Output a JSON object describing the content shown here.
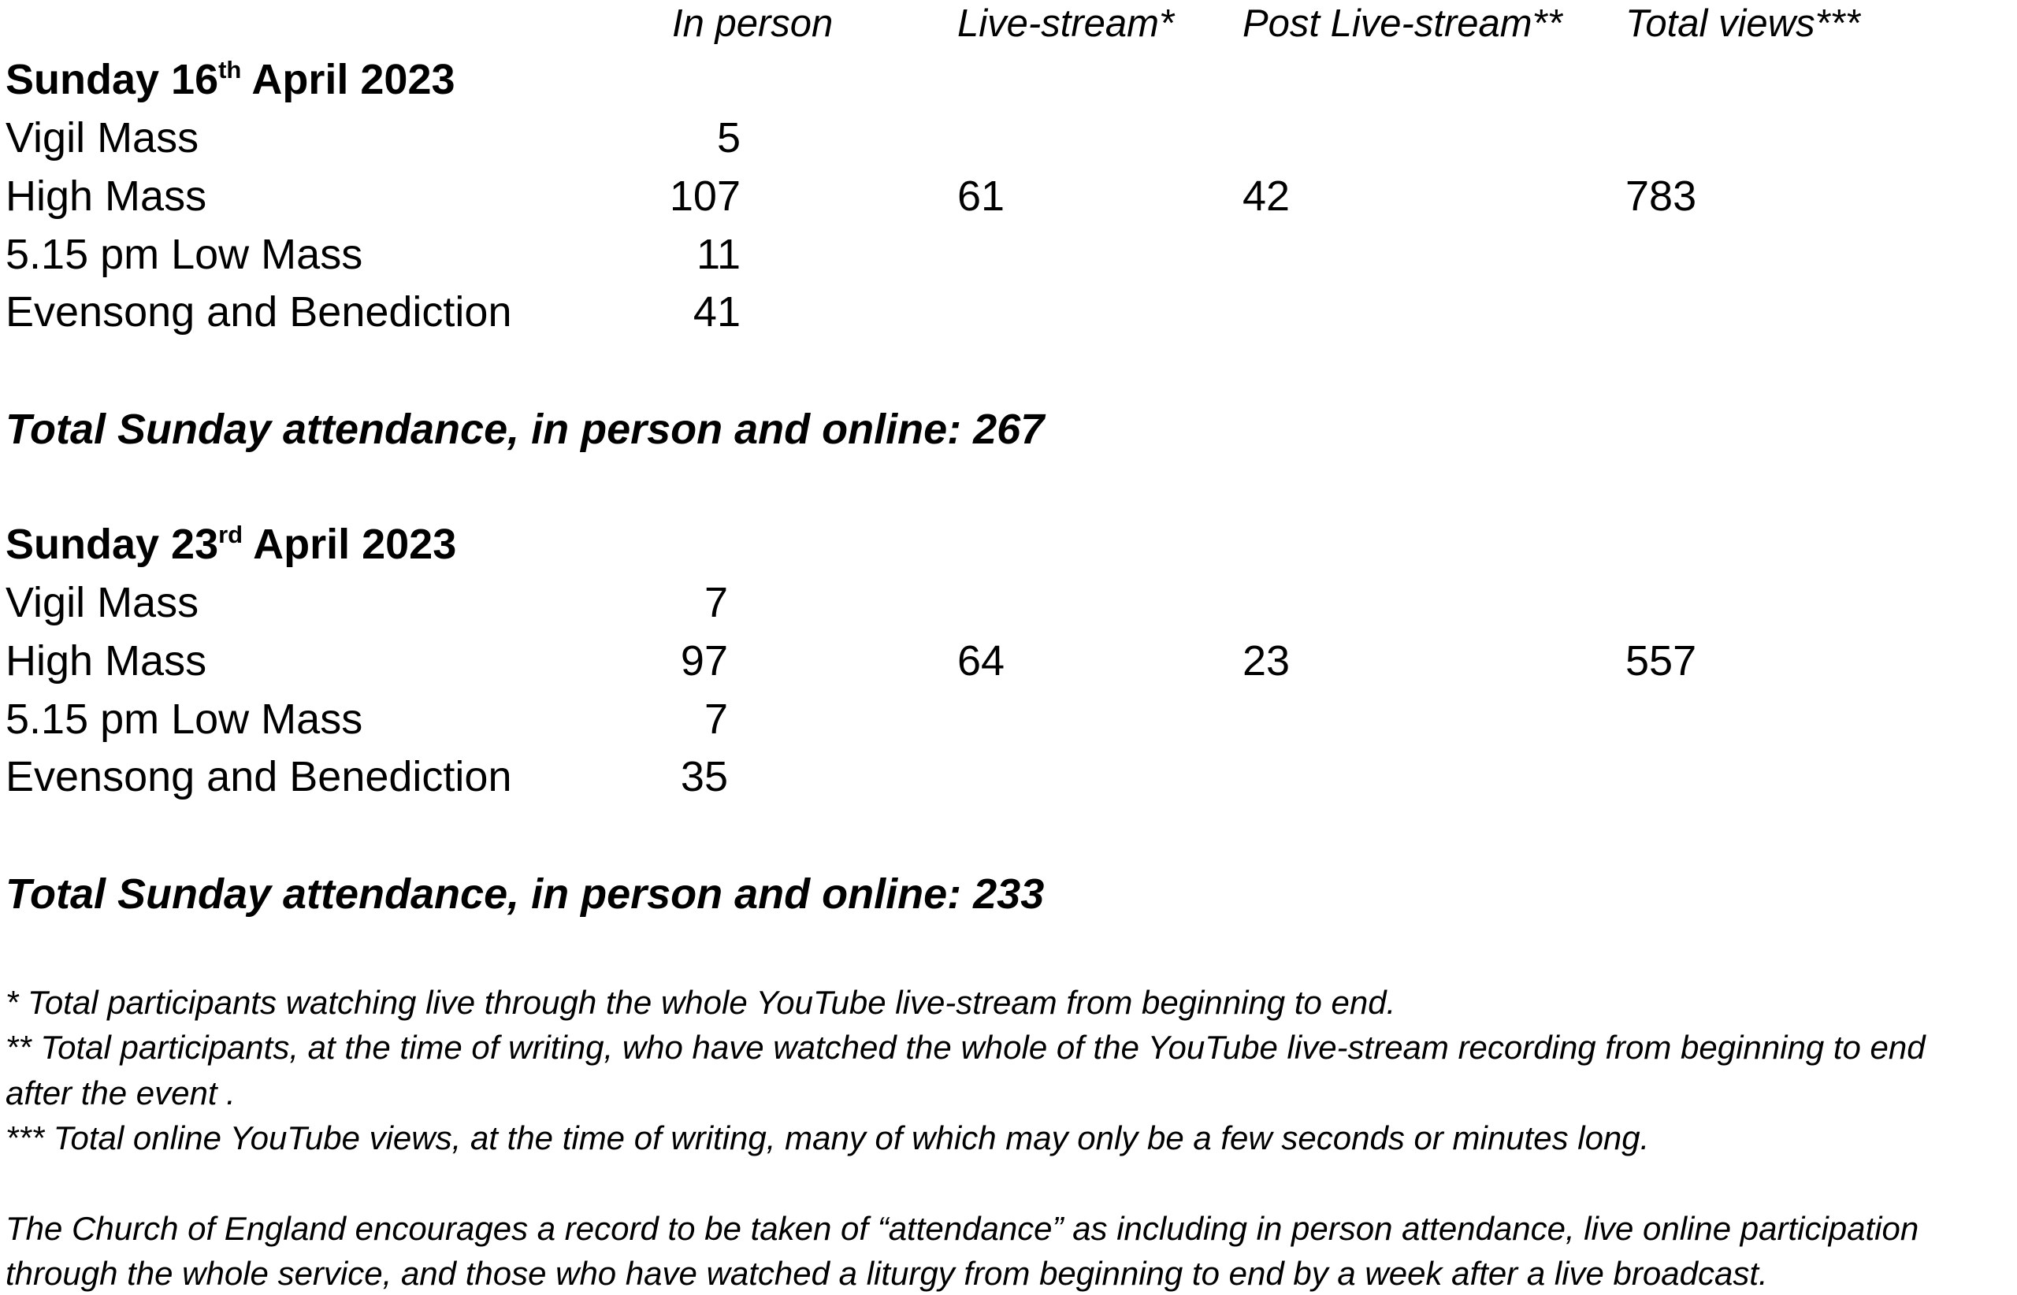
{
  "columns": {
    "in_person": "In person",
    "live_stream": "Live-stream*",
    "post_live_stream": "Post Live-stream**",
    "total_views": "Total views***"
  },
  "sections": [
    {
      "date_prefix": "Sunday 16",
      "date_suffix": "th",
      "date_rest": " April 2023",
      "rows": [
        {
          "service": "Vigil Mass",
          "in_person": "5",
          "live_stream": "",
          "post_live_stream": "",
          "total_views": ""
        },
        {
          "service": "High Mass",
          "in_person": "107",
          "live_stream": "61",
          "post_live_stream": "42",
          "total_views": "783"
        },
        {
          "service": "5.15 pm Low Mass",
          "in_person": "11",
          "live_stream": "",
          "post_live_stream": "",
          "total_views": ""
        },
        {
          "service": "Evensong and Benediction",
          "in_person": "41",
          "live_stream": "",
          "post_live_stream": "",
          "total_views": ""
        }
      ],
      "total_text": "Total Sunday attendance, in person and online: 267"
    },
    {
      "date_prefix": "Sunday 23",
      "date_suffix": "rd",
      "date_rest": " April 2023",
      "rows": [
        {
          "service": "Vigil Mass",
          "in_person": "7",
          "live_stream": "",
          "post_live_stream": "",
          "total_views": ""
        },
        {
          "service": "High Mass",
          "in_person": "97",
          "live_stream": "64",
          "post_live_stream": "23",
          "total_views": "557"
        },
        {
          "service": "5.15 pm Low Mass",
          "in_person": "7",
          "live_stream": "",
          "post_live_stream": "",
          "total_views": ""
        },
        {
          "service": "Evensong and Benediction",
          "in_person": "35",
          "live_stream": "",
          "post_live_stream": "",
          "total_views": ""
        }
      ],
      "total_text": "Total Sunday attendance, in person and online: 233"
    }
  ],
  "footnotes": {
    "live_stream": "* Total participants watching live through the whole YouTube live-stream from beginning to end.",
    "post_live_stream_line1": "** Total participants, at the time of writing, who have watched the whole of the YouTube live-stream recording from beginning to end",
    "post_live_stream_line2": "after the event .",
    "total_views": "*** Total online YouTube views, at the time of writing, many of which may only be a few seconds or minutes long."
  },
  "closing_note": {
    "line1": "The Church of England encourages a record to be taken of “attendance” as including in person attendance, live online participation",
    "line2": "through the whole service, and those who have watched a liturgy from beginning to end by a week after a live broadcast."
  }
}
